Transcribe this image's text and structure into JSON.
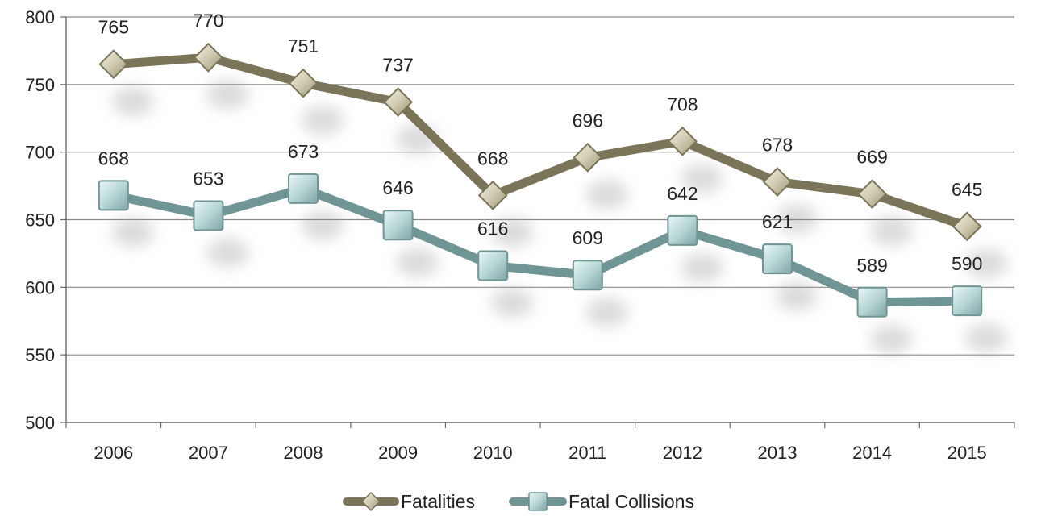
{
  "chart_data": {
    "type": "line",
    "categories": [
      "2006",
      "2007",
      "2008",
      "2009",
      "2010",
      "2011",
      "2012",
      "2013",
      "2014",
      "2015"
    ],
    "series": [
      {
        "name": "Fatalities",
        "values": [
          765,
          770,
          751,
          737,
          668,
          696,
          708,
          678,
          669,
          645
        ],
        "color": "#7a7558",
        "marker_color": "#cfcab0",
        "marker": "diamond"
      },
      {
        "name": "Fatal Collisions",
        "values": [
          668,
          653,
          673,
          646,
          616,
          609,
          642,
          621,
          589,
          590
        ],
        "color": "#6f9594",
        "marker_color": "#b7d6d6",
        "marker": "square"
      }
    ],
    "title": "",
    "xlabel": "",
    "ylabel": "",
    "ylim": [
      500,
      800
    ],
    "yticks": [
      "500",
      "550",
      "600",
      "650",
      "700",
      "750",
      "800"
    ],
    "grid": "horizontal",
    "legend": "bottom"
  }
}
